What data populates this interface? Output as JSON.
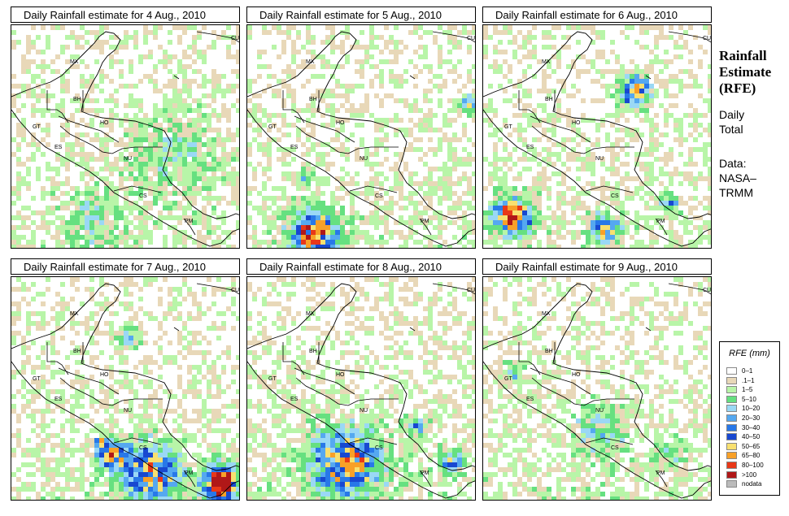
{
  "header": {
    "title_line1": "Rainfall",
    "title_line2": "Estimate",
    "title_line3": "(RFE)",
    "daily_line1": "Daily",
    "daily_line2": "Total",
    "data_line1": "Data:",
    "data_line2": "NASA–",
    "data_line3": "TRMM"
  },
  "panels": [
    {
      "title": "Daily Rainfall estimate for  4 Aug., 2010",
      "seed": 4,
      "blobs": [
        [
          0.7,
          0.55,
          0.2,
          0.6
        ],
        [
          0.35,
          0.85,
          0.15,
          0.5
        ]
      ]
    },
    {
      "title": "Daily Rainfall estimate for  5 Aug., 2010",
      "seed": 5,
      "blobs": [
        [
          0.28,
          0.92,
          0.1,
          2.6
        ],
        [
          0.96,
          0.34,
          0.04,
          1.8
        ],
        [
          0.24,
          0.66,
          0.03,
          1.4
        ]
      ]
    },
    {
      "title": "Daily Rainfall estimate for  6 Aug., 2010",
      "seed": 6,
      "blobs": [
        [
          0.65,
          0.28,
          0.07,
          2.0
        ],
        [
          0.12,
          0.84,
          0.08,
          2.6
        ],
        [
          0.52,
          0.9,
          0.06,
          2.0
        ],
        [
          0.8,
          0.78,
          0.04,
          1.2
        ]
      ]
    },
    {
      "title": "Daily Rainfall estimate for  7 Aug., 2010",
      "seed": 7,
      "blobs": [
        [
          0.6,
          0.86,
          0.13,
          2.0
        ],
        [
          0.9,
          0.91,
          0.07,
          3.6
        ],
        [
          0.43,
          0.78,
          0.06,
          2.2
        ],
        [
          0.38,
          0.73,
          0.03,
          1.6
        ],
        [
          0.5,
          0.26,
          0.05,
          1.0
        ]
      ]
    },
    {
      "title": "Daily Rainfall estimate for  8 Aug., 2010",
      "seed": 8,
      "blobs": [
        [
          0.42,
          0.82,
          0.15,
          2.0
        ],
        [
          0.88,
          0.81,
          0.05,
          1.6
        ],
        [
          0.72,
          0.65,
          0.04,
          1.4
        ]
      ]
    },
    {
      "title": "Daily Rainfall estimate for  9 Aug., 2010",
      "seed": 9,
      "blobs": [
        [
          0.5,
          0.68,
          0.12,
          0.8
        ],
        [
          0.12,
          0.42,
          0.05,
          0.9
        ],
        [
          0.8,
          0.78,
          0.06,
          0.8
        ]
      ]
    }
  ],
  "country_labels": [
    "MX",
    "CU",
    "BH",
    "GT",
    "HO",
    "ES",
    "NU",
    "CS",
    "PM"
  ],
  "legend": {
    "title": "RFE (mm)",
    "items": [
      {
        "label": "0–1",
        "color": "#ffffff"
      },
      {
        "label": ".1–1",
        "color": "#e8d8b8"
      },
      {
        "label": "1–5",
        "color": "#b8f5a8"
      },
      {
        "label": "5–10",
        "color": "#66e080"
      },
      {
        "label": "10–20",
        "color": "#9ad8f5"
      },
      {
        "label": "20–30",
        "color": "#55a8f0"
      },
      {
        "label": "30–40",
        "color": "#2878e8"
      },
      {
        "label": "40–50",
        "color": "#1848d0"
      },
      {
        "label": "50–65",
        "color": "#f8e070"
      },
      {
        "label": "65–80",
        "color": "#f8a028"
      },
      {
        "label": "80–100",
        "color": "#e83818"
      },
      {
        "label": ">100",
        "color": "#b01818"
      },
      {
        "label": "nodata",
        "color": "#bbbbbb"
      }
    ]
  }
}
